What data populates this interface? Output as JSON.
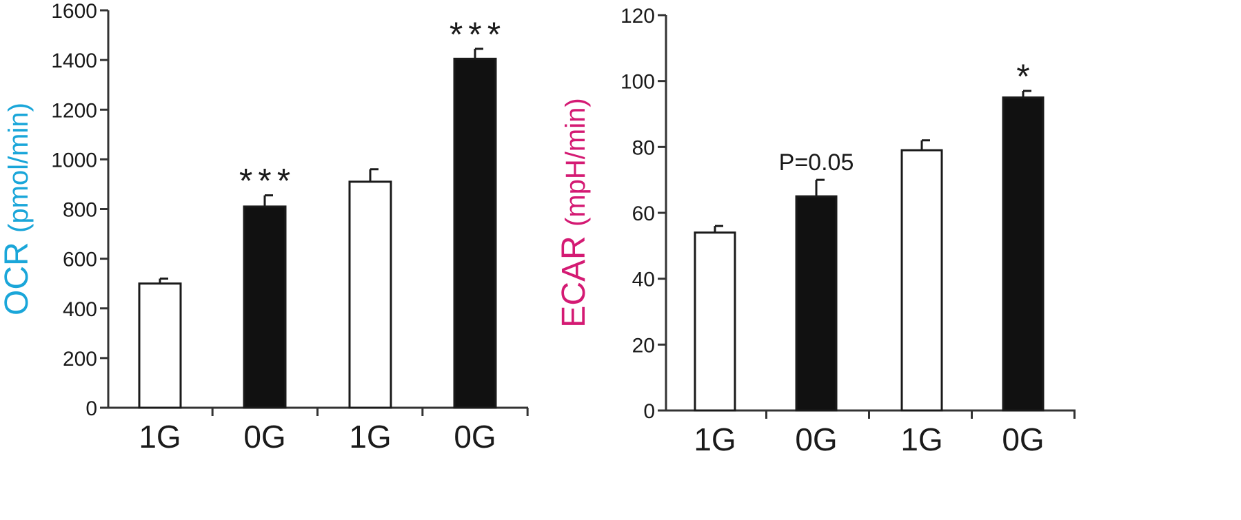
{
  "chart_data": [
    {
      "type": "bar",
      "ylabel_prefix": "OCR",
      "ylabel_unit": "(pmol/min)",
      "ylabel_color": "#1aa6d9",
      "ylim": [
        0,
        1600
      ],
      "yticks": [
        "0",
        "200",
        "400",
        "600",
        "800",
        "1000",
        "1200",
        "1400",
        "1600"
      ],
      "categories": [
        "1G",
        "0G",
        "1G",
        "0G"
      ],
      "values": [
        500,
        810,
        910,
        1405
      ],
      "errors": [
        20,
        45,
        50,
        40
      ],
      "fills": [
        "#ffffff",
        "#111111",
        "#ffffff",
        "#111111"
      ],
      "annotations": [
        "",
        "***",
        "",
        "***"
      ],
      "grid": false
    },
    {
      "type": "bar",
      "ylabel_prefix": "ECAR",
      "ylabel_unit": "(mpH/min)",
      "ylabel_color": "#d41a73",
      "ylim": [
        0,
        120
      ],
      "yticks": [
        "0",
        "20",
        "40",
        "60",
        "80",
        "100",
        "120"
      ],
      "categories": [
        "1G",
        "0G",
        "1G",
        "0G"
      ],
      "values": [
        54,
        65,
        79,
        95
      ],
      "errors": [
        2,
        5,
        3,
        2
      ],
      "fills": [
        "#ffffff",
        "#111111",
        "#ffffff",
        "#111111"
      ],
      "annotations": [
        "",
        "P=0.05",
        "",
        "*"
      ],
      "grid": false
    }
  ]
}
